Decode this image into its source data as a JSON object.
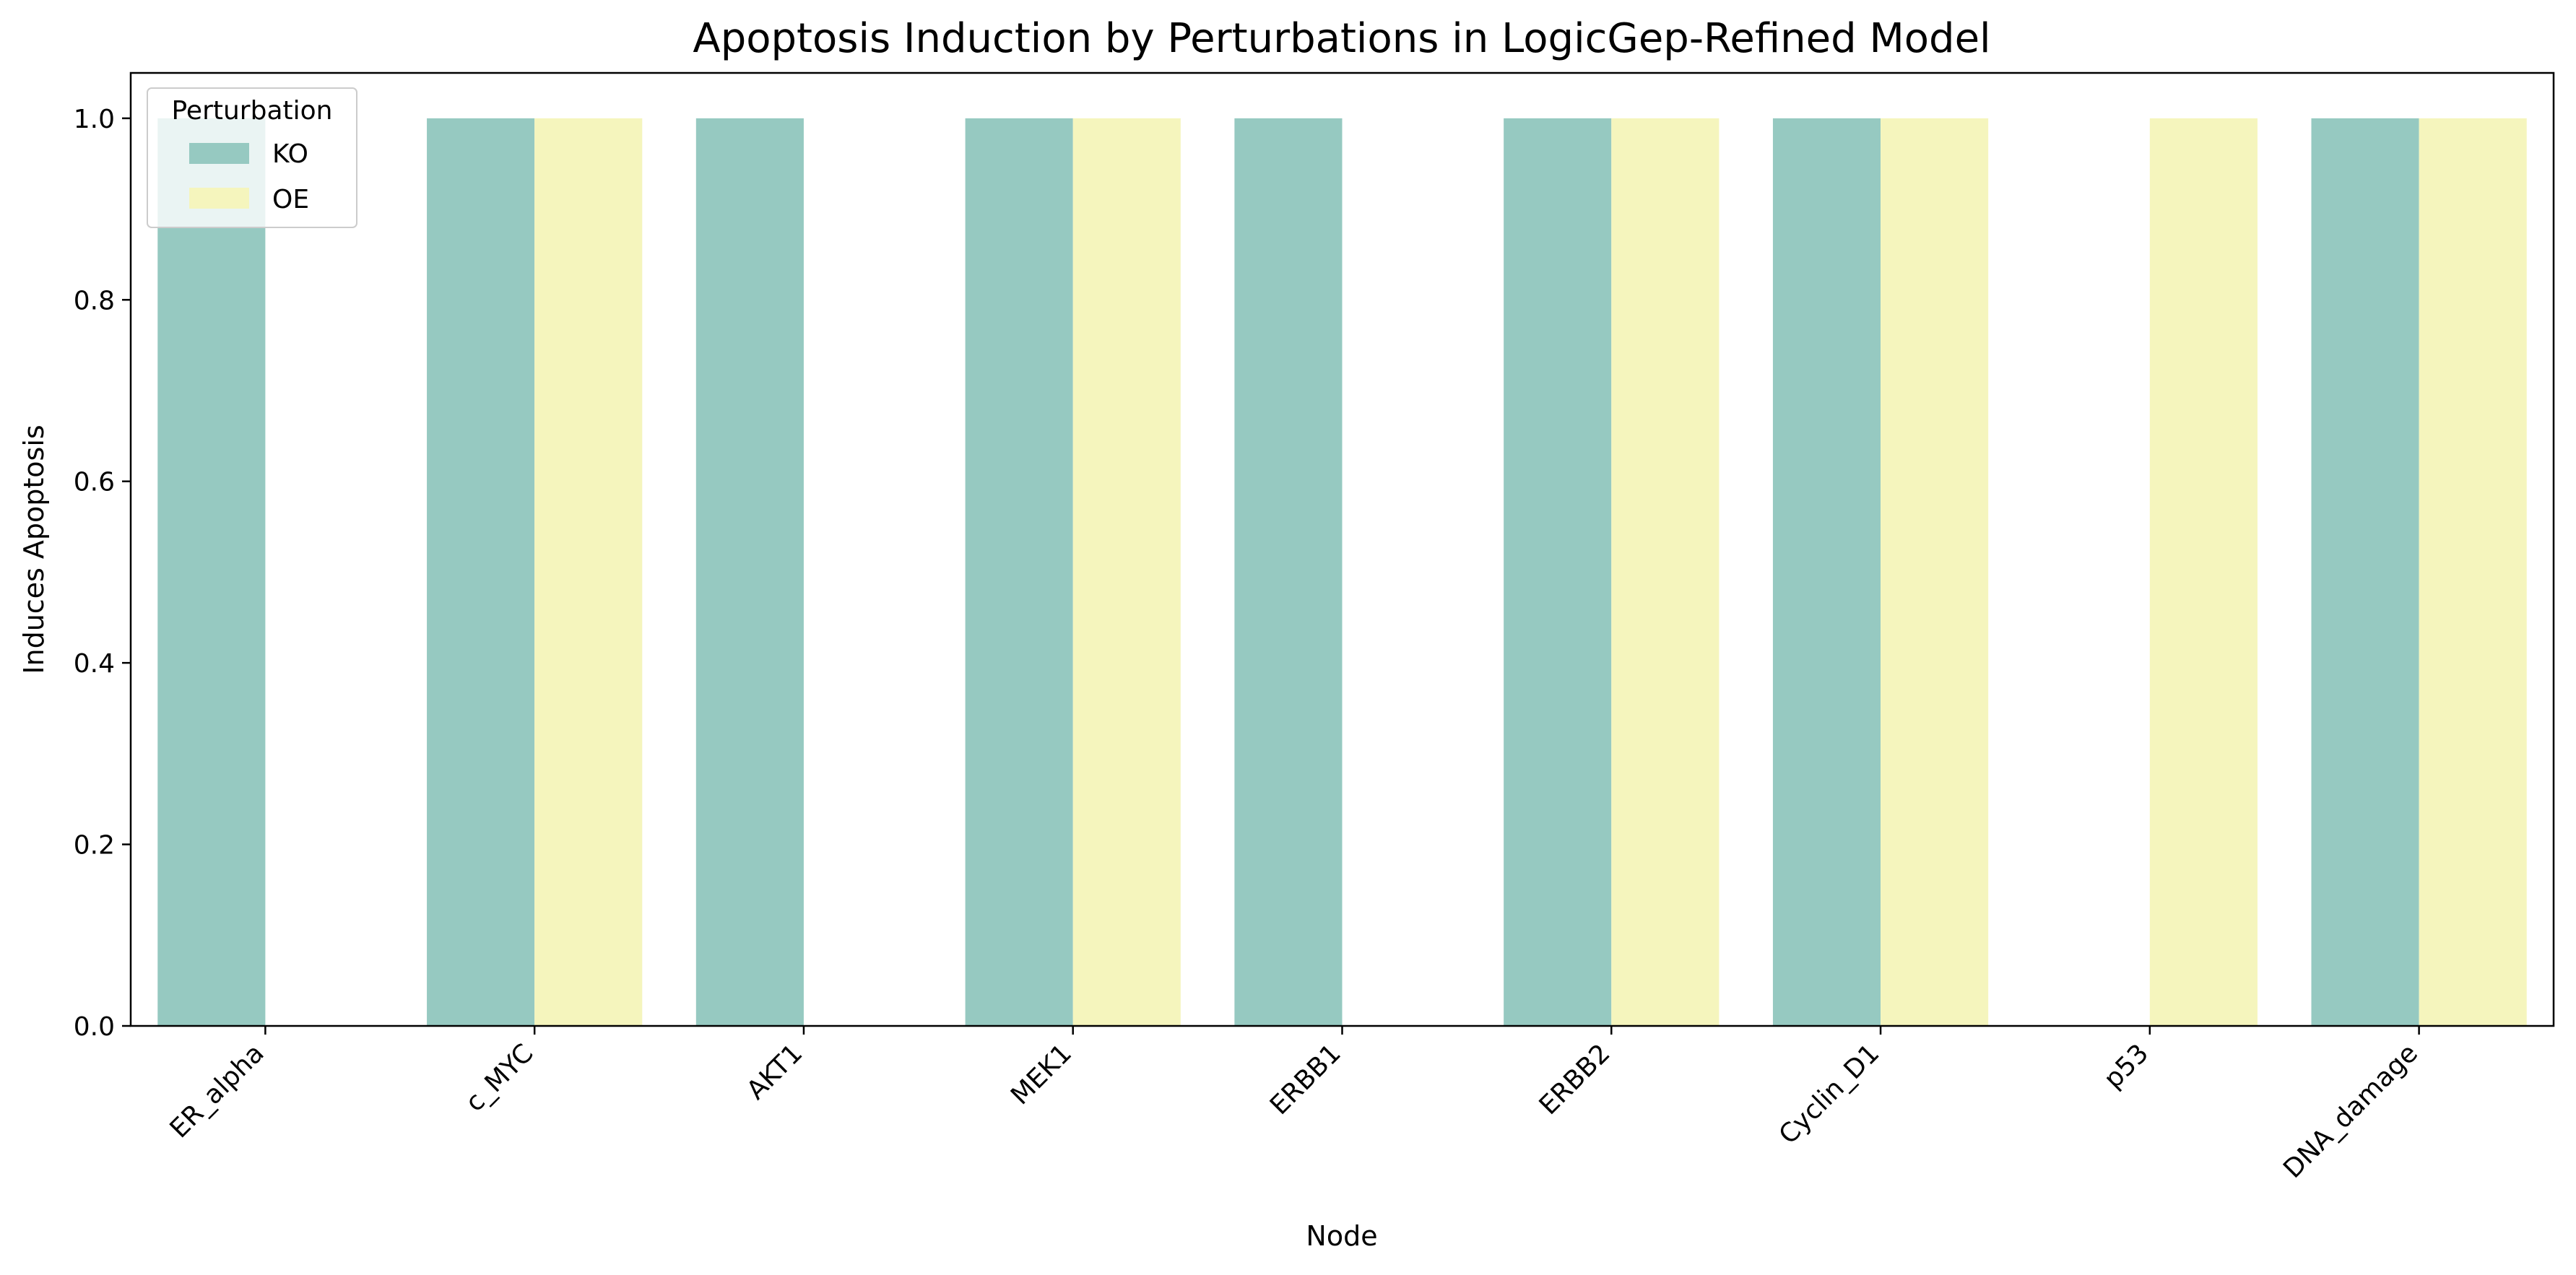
{
  "chart_data": {
    "type": "bar",
    "title": "Apoptosis Induction by Perturbations in LogicGep-Refined Model",
    "xlabel": "Node",
    "ylabel": "Induces Apoptosis",
    "categories": [
      "ER_alpha",
      "c_MYC",
      "AKT1",
      "MEK1",
      "ERBB1",
      "ERBB2",
      "Cyclin_D1",
      "p53",
      "DNA_damage"
    ],
    "series": [
      {
        "name": "KO",
        "color": "#96c9c1",
        "values": [
          1,
          1,
          1,
          1,
          1,
          1,
          1,
          0,
          1
        ]
      },
      {
        "name": "OE",
        "color": "#f5f5bd",
        "values": [
          0,
          1,
          0,
          1,
          0,
          1,
          1,
          1,
          1
        ]
      }
    ],
    "ylim": [
      0,
      1.05
    ],
    "yticks": [
      0.0,
      0.2,
      0.4,
      0.6,
      0.8,
      1.0
    ],
    "ytick_labels": [
      "0.0",
      "0.2",
      "0.4",
      "0.6",
      "0.8",
      "1.0"
    ],
    "legend": {
      "title": "Perturbation",
      "position": "top-left"
    },
    "grid": false
  }
}
